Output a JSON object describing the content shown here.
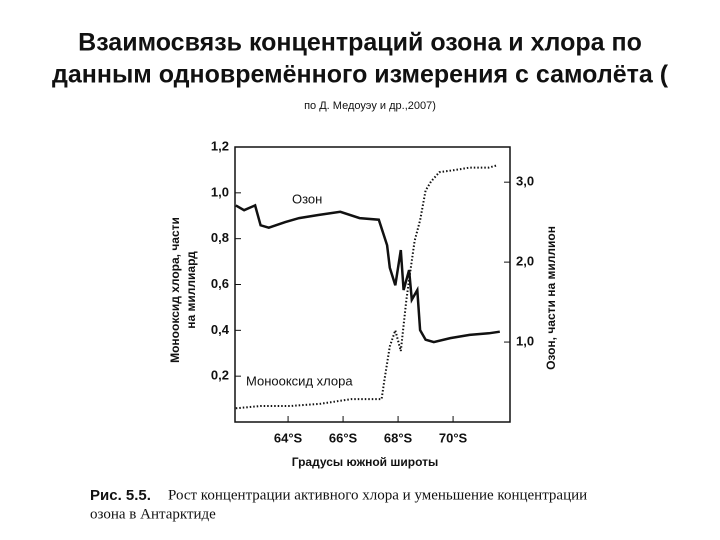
{
  "chart_data": {
    "type": "line",
    "title": [
      "Взаимосвязь концентраций озона и хлора по",
      "данным одновремённого измерения с самолёта ("
    ],
    "subtitle": "по Д. Медоуэу и др.,2007)",
    "xlabel": "Градусы южной широты",
    "ylabel": [
      "Монооксид хлора, части",
      "на миллиард"
    ],
    "y2label": "Озон, части на миллион",
    "caption_label": "Рис. 5.5.",
    "caption": [
      "Рост концентрации активного хлора и уменьшение концентрации",
      "озона в Антарктиде"
    ],
    "xlim": [
      62.07,
      72.07
    ],
    "xticks": [
      {
        "value": 64,
        "label": "64°S"
      },
      {
        "value": 66,
        "label": "66°S"
      },
      {
        "value": 68,
        "label": "68°S"
      },
      {
        "value": 70,
        "label": "70°S"
      }
    ],
    "ylim": [
      0,
      1.2
    ],
    "yticks": [
      {
        "value": 0.2,
        "label": "0,2"
      },
      {
        "value": 0.4,
        "label": "0,4"
      },
      {
        "value": 0.6,
        "label": "0,6"
      },
      {
        "value": 0.8,
        "label": "0,8"
      },
      {
        "value": 1.0,
        "label": "1,0"
      },
      {
        "value": 1.2,
        "label": "1,2"
      }
    ],
    "y2lim": [
      0,
      3.44
    ],
    "y2ticks": [
      {
        "value": 1.0,
        "label": "1,0"
      },
      {
        "value": 2.0,
        "label": "2,0"
      },
      {
        "value": 3.0,
        "label": "3,0"
      }
    ],
    "series": [
      {
        "name": "Озон",
        "color": "#111111",
        "axis": "y2",
        "dash": false,
        "x": [
          62.1,
          62.4,
          62.8,
          63.0,
          63.3,
          63.9,
          64.4,
          65.1,
          65.9,
          66.6,
          67.3,
          67.6,
          67.7,
          67.9,
          68.1,
          68.2,
          68.4,
          68.5,
          68.7,
          68.8,
          69.0,
          69.3,
          69.9,
          70.6,
          71.3,
          71.7
        ],
        "values": [
          2.71,
          2.65,
          2.71,
          2.46,
          2.43,
          2.5,
          2.55,
          2.59,
          2.63,
          2.55,
          2.53,
          2.21,
          1.93,
          1.71,
          2.15,
          1.65,
          1.9,
          1.53,
          1.65,
          1.15,
          1.03,
          1.0,
          1.05,
          1.09,
          1.11,
          1.13
        ]
      },
      {
        "name": "Монооксид хлора",
        "color": "#111111",
        "axis": "y",
        "dash": true,
        "x": [
          62.1,
          63.0,
          64.1,
          65.2,
          66.3,
          67.4,
          67.5,
          67.7,
          67.9,
          68.1,
          68.3,
          68.4,
          68.6,
          68.8,
          69.0,
          69.2,
          69.5,
          70.1,
          70.6,
          71.3,
          71.6
        ],
        "values": [
          0.06,
          0.07,
          0.07,
          0.08,
          0.1,
          0.1,
          0.18,
          0.33,
          0.4,
          0.31,
          0.53,
          0.62,
          0.79,
          0.88,
          1.01,
          1.05,
          1.09,
          1.1,
          1.11,
          1.11,
          1.12
        ]
      }
    ]
  }
}
